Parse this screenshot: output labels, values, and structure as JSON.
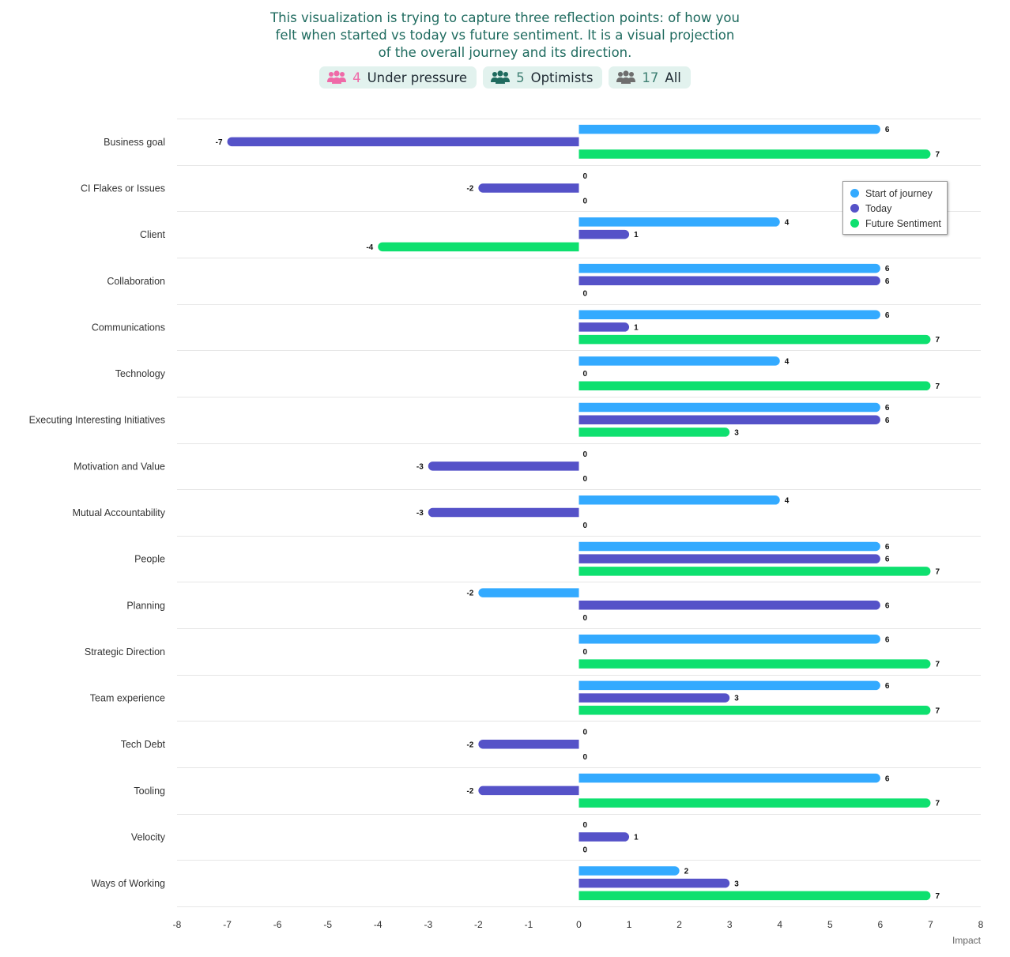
{
  "intro": {
    "text": "This visualization is trying to capture three reflection points: of how you felt when started vs today vs future sentiment. It is a visual projection of the overall journey and its direction."
  },
  "filters": [
    {
      "count": "4",
      "label": "Under pressure",
      "icon": "group-icon",
      "color": "#ef6aa8"
    },
    {
      "count": "5",
      "label": "Optimists",
      "icon": "group-icon",
      "color": "#1f6b5f"
    },
    {
      "count": "17",
      "label": "All",
      "icon": "group-icon",
      "color": "#6e6e6e"
    }
  ],
  "chart_data": {
    "type": "bar",
    "orientation": "horizontal",
    "categories": [
      "Business goal",
      "CI Flakes or Issues",
      "Client",
      "Collaboration",
      "Communications",
      "Technology",
      "Executing Interesting Initiatives",
      "Motivation and Value",
      "Mutual Accountability",
      "People",
      "Planning",
      "Strategic Direction",
      "Team experience",
      "Tech Debt",
      "Tooling",
      "Velocity",
      "Ways of Working"
    ],
    "series": [
      {
        "name": "Start of journey",
        "color": "#33aaff",
        "values": [
          6,
          0,
          4,
          6,
          6,
          4,
          6,
          0,
          4,
          6,
          -2,
          6,
          6,
          0,
          6,
          0,
          2
        ]
      },
      {
        "name": "Today",
        "color": "#5552c8",
        "values": [
          -7,
          -2,
          1,
          6,
          1,
          0,
          6,
          -3,
          -3,
          6,
          6,
          0,
          3,
          -2,
          -2,
          1,
          3
        ]
      },
      {
        "name": "Future Sentiment",
        "color": "#0ee06f",
        "values": [
          7,
          0,
          -4,
          0,
          7,
          7,
          3,
          0,
          0,
          7,
          0,
          7,
          7,
          0,
          7,
          0,
          7
        ]
      }
    ],
    "xlim": [
      -8,
      8
    ],
    "xticks": [
      "-8",
      "-7",
      "-6",
      "-5",
      "-4",
      "-3",
      "-2",
      "-1",
      "0",
      "1",
      "2",
      "3",
      "4",
      "5",
      "6",
      "7",
      "8"
    ],
    "xlabel": "Impact",
    "ylabel": "",
    "data_labels": true,
    "legend_position": "top-right",
    "grid": "horizontal separators"
  }
}
